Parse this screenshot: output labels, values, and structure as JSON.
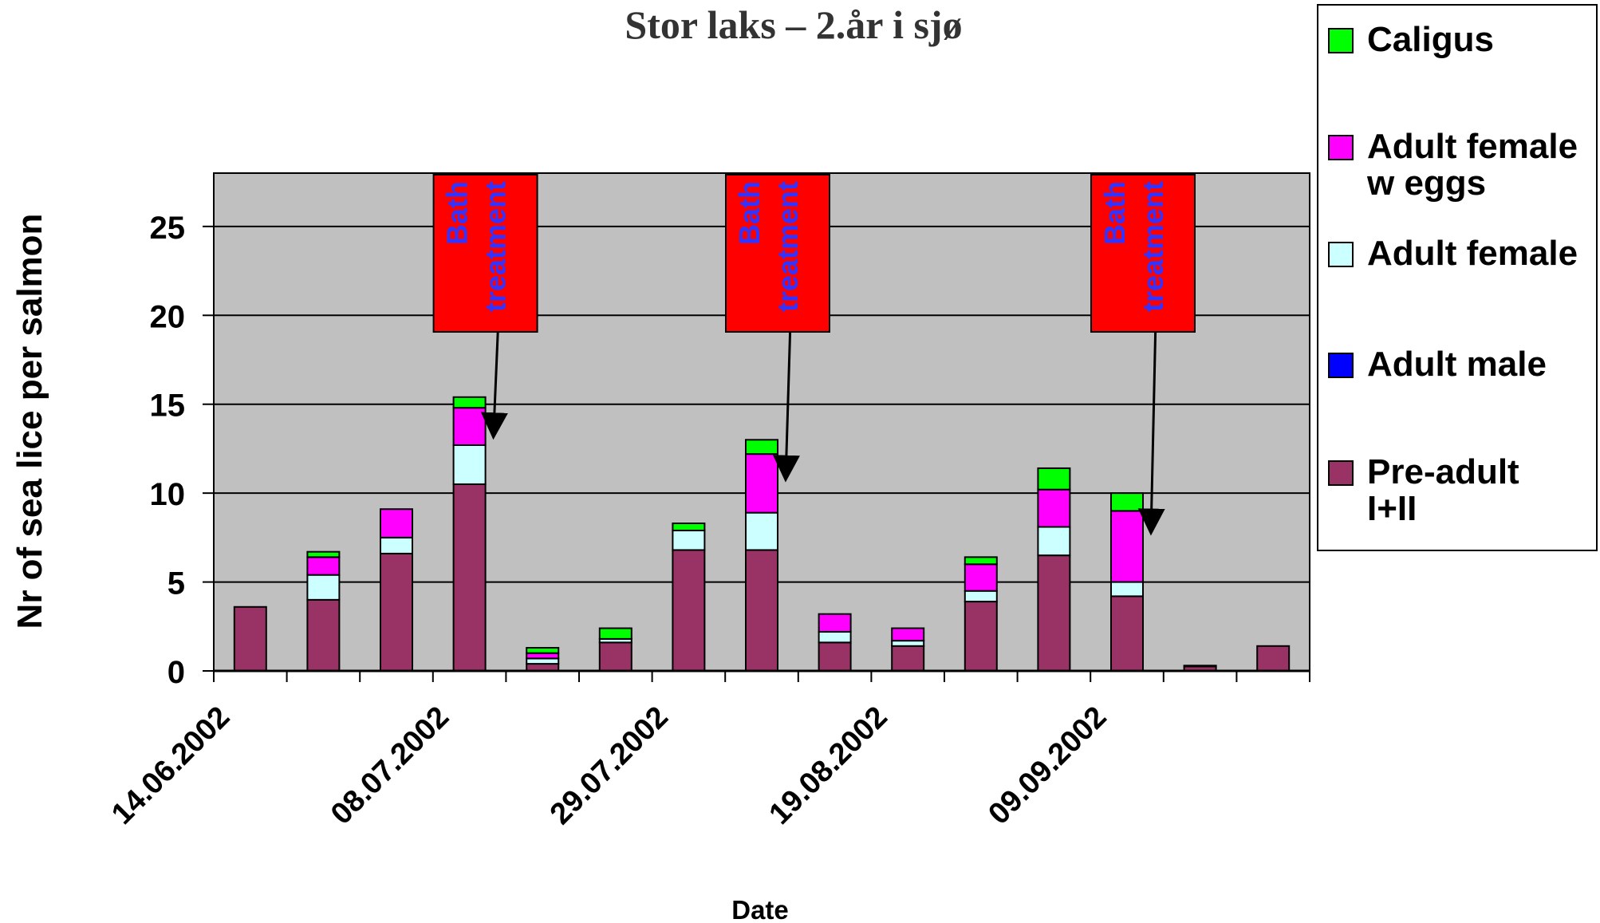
{
  "chart_data": {
    "type": "bar",
    "stacked": true,
    "title": "Stor laks – 2.år i sjø",
    "xlabel": "Date",
    "ylabel": "Nr of sea lice per salmon",
    "ylim": [
      0,
      28
    ],
    "yticks": [
      0,
      5,
      10,
      15,
      20,
      25
    ],
    "grid": true,
    "legend_position": "right",
    "x_tick_labels": [
      "14.06.2002",
      "08.07.2002",
      "29.07.2002",
      "19.08.2002",
      "09.09.2002"
    ],
    "categories": [
      "1",
      "2",
      "3",
      "4",
      "5",
      "6",
      "7",
      "8",
      "9",
      "10",
      "11",
      "12",
      "13",
      "14",
      "15"
    ],
    "series": [
      {
        "name": "Pre-adult I+II",
        "color": "#993366",
        "values": [
          3.6,
          4.0,
          6.6,
          10.5,
          0.4,
          1.6,
          6.8,
          6.8,
          1.6,
          1.4,
          3.9,
          6.5,
          4.2,
          0.25,
          1.4
        ]
      },
      {
        "name": "Adult male",
        "color": "#0000ff",
        "values": [
          0.0,
          0.0,
          0.0,
          0.0,
          0.0,
          0.0,
          0.0,
          0.0,
          0.0,
          0.0,
          0.0,
          0.0,
          0.0,
          0.0,
          0.0
        ]
      },
      {
        "name": "Adult female",
        "color": "#ccffff",
        "values": [
          0.0,
          1.4,
          0.9,
          2.2,
          0.3,
          0.2,
          1.1,
          2.1,
          0.6,
          0.3,
          0.6,
          1.6,
          0.8,
          0.0,
          0.0
        ]
      },
      {
        "name": "Adult female w eggs",
        "color": "#ff00ff",
        "values": [
          0.0,
          1.0,
          1.6,
          2.1,
          0.3,
          0.0,
          0.0,
          3.3,
          1.0,
          0.7,
          1.5,
          2.1,
          4.0,
          0.05,
          0.0
        ]
      },
      {
        "name": "Caligus",
        "color": "#00ff00",
        "values": [
          0.0,
          0.3,
          0.0,
          0.6,
          0.3,
          0.6,
          0.4,
          0.8,
          0.0,
          0.0,
          0.4,
          1.2,
          1.0,
          0.0,
          0.0
        ]
      }
    ],
    "annotations": [
      {
        "text_line1": "Bath",
        "text_line2": "treatment",
        "points_to_category": "4"
      },
      {
        "text_line1": "Bath",
        "text_line2": "treatment",
        "points_to_category": "8"
      },
      {
        "text_line1": "Bath",
        "text_line2": "treatment",
        "points_to_category": "13"
      }
    ],
    "legend": [
      {
        "label_line1": "Caligus",
        "label_line2": "",
        "color": "#00ff00"
      },
      {
        "label_line1": "Adult female",
        "label_line2": "w eggs",
        "color": "#ff00ff"
      },
      {
        "label_line1": "Adult female",
        "label_line2": "",
        "color": "#ccffff"
      },
      {
        "label_line1": "Adult male",
        "label_line2": "",
        "color": "#0000ff"
      },
      {
        "label_line1": "Pre-adult",
        "label_line2": "I+II",
        "color": "#993366"
      }
    ],
    "colors": {
      "plot_background": "#c0c0c0",
      "annotation_box": "#ff0000",
      "annotation_text": "#3333ff"
    }
  }
}
